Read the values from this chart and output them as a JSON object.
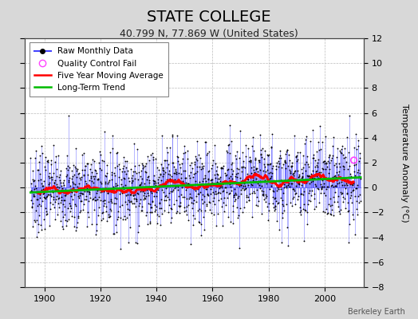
{
  "title": "STATE COLLEGE",
  "subtitle": "40.799 N, 77.869 W (United States)",
  "ylabel": "Temperature Anomaly (°C)",
  "ylim": [
    -8,
    12
  ],
  "yticks": [
    -8,
    -6,
    -4,
    -2,
    0,
    2,
    4,
    6,
    8,
    10,
    12
  ],
  "xlim": [
    1893,
    2014
  ],
  "xticks": [
    1900,
    1920,
    1940,
    1960,
    1980,
    2000
  ],
  "start_year": 1895,
  "end_year": 2012,
  "background_color": "#d8d8d8",
  "plot_bg_color": "#ffffff",
  "raw_line_color": "#4444ff",
  "raw_line_alpha": 0.55,
  "raw_dot_color": "#000000",
  "moving_avg_color": "#ff0000",
  "trend_color": "#00bb00",
  "qc_fail_color": "#ff44ff",
  "title_fontsize": 14,
  "subtitle_fontsize": 9,
  "tick_fontsize": 8,
  "ylabel_fontsize": 8,
  "attribution": "Berkeley Earth",
  "seed": 7
}
